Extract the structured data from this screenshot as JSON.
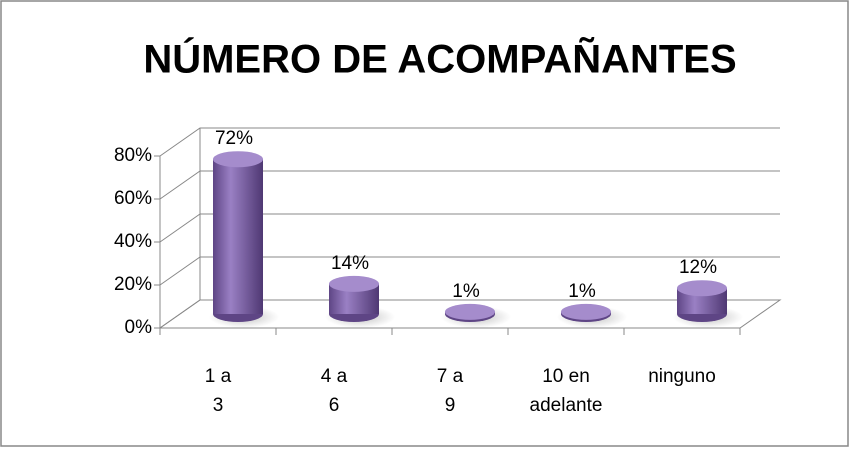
{
  "chart_data": {
    "type": "bar",
    "title": "NÚMERO DE ACOMPAÑANTES",
    "categories": [
      "1 a 3",
      "4 a 6",
      "7 a 9",
      "10 en adelante",
      "ninguno"
    ],
    "values": [
      72,
      14,
      1,
      1,
      12
    ],
    "value_labels": [
      "72%",
      "14%",
      "1%",
      "1%",
      "12%"
    ],
    "color": "#7b5ea7",
    "ylim": [
      0,
      80
    ],
    "yticks": [
      {
        "value": 0,
        "label": "0%"
      },
      {
        "value": 20,
        "label": "20%"
      },
      {
        "value": 40,
        "label": "40%"
      },
      {
        "value": 60,
        "label": "60%"
      },
      {
        "value": 80,
        "label": "80%"
      }
    ],
    "grid": true
  }
}
